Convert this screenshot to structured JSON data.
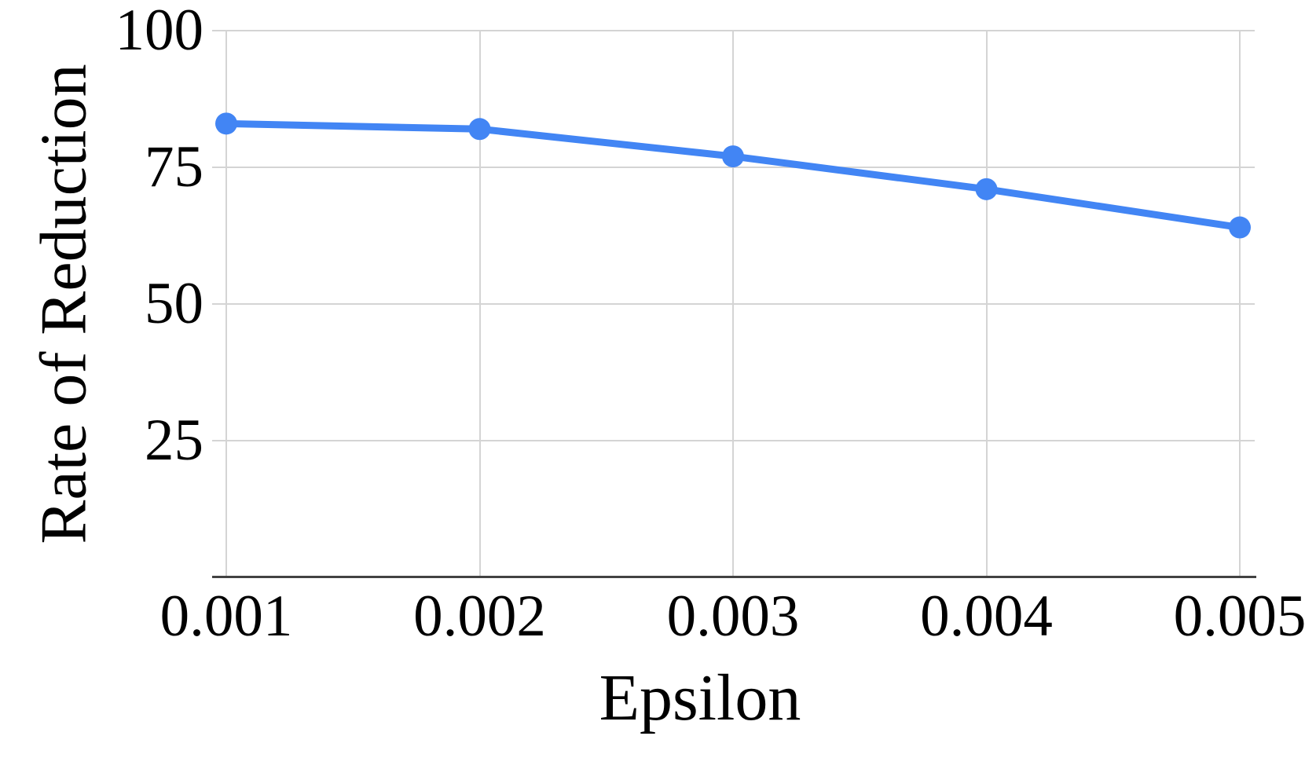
{
  "chart_data": {
    "type": "line",
    "title": "",
    "xlabel": "Epsilon",
    "ylabel": "Rate of Reduction",
    "x": [
      0.001,
      0.002,
      0.003,
      0.004,
      0.005
    ],
    "x_tick_labels": [
      "0.001",
      "0.002",
      "0.003",
      "0.004",
      "0.005"
    ],
    "series": [
      {
        "name": "Rate of Reduction",
        "values": [
          83,
          82,
          77,
          71,
          64
        ]
      }
    ],
    "ylim": [
      0,
      100
    ],
    "y_ticks": [
      100,
      75,
      50,
      25
    ],
    "y_tick_labels": [
      "100",
      "75",
      "50",
      "25"
    ],
    "grid": true,
    "legend": false,
    "marker": "circle",
    "colors": {
      "line": "#4285f4",
      "marker": "#4285f4",
      "gridline": "#d4d4d4",
      "axis_line": "#424242",
      "text": "#000000",
      "background": "#ffffff"
    }
  }
}
